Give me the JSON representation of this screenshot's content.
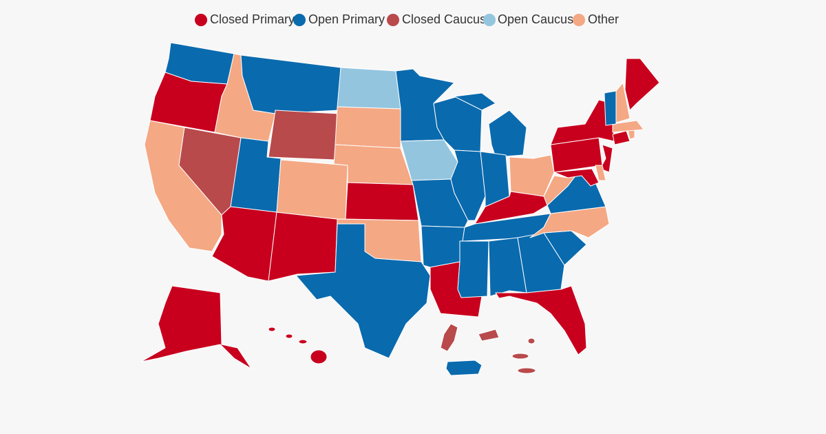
{
  "legend": [
    {
      "label": "Closed Primary",
      "color": "#c8001e"
    },
    {
      "label": "Open Primary",
      "color": "#0a6aae"
    },
    {
      "label": "Closed Caucus",
      "color": "#b84a4c"
    },
    {
      "label": "Open Caucus",
      "color": "#93c5df"
    },
    {
      "label": "Other",
      "color": "#f4a884"
    }
  ]
}
